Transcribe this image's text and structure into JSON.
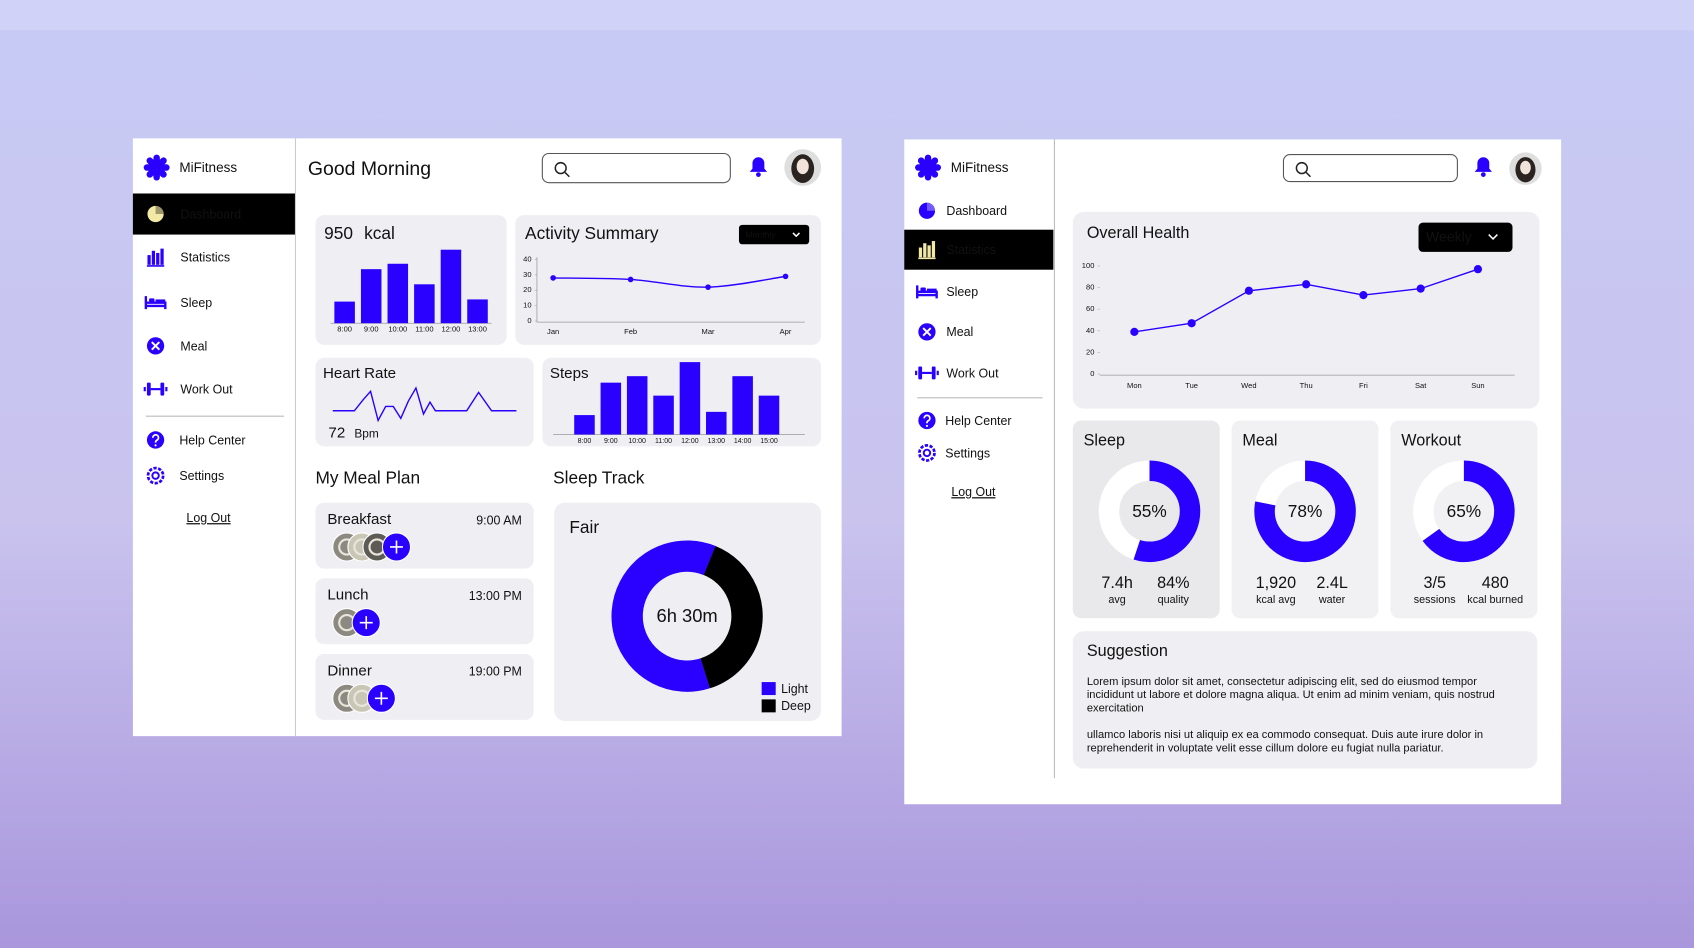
{
  "dashboard": {
    "brand": "MiFitness",
    "nav": [
      "Dashboard",
      "Statistics",
      "Sleep",
      "Meal",
      "Work Out"
    ],
    "active_nav": 0,
    "support": [
      "Help Center",
      "Settings"
    ],
    "logout": "Log Out",
    "greeting": "Good Morning",
    "calories": {
      "type": "bar",
      "value": 950,
      "unit": "kcal",
      "categories": [
        "8:00",
        "9:00",
        "10:00",
        "11:00",
        "12:00",
        "13:00"
      ],
      "values": [
        20,
        50,
        55,
        36,
        68,
        22
      ],
      "ylim": [
        0,
        70
      ],
      "color": "#2a00ff"
    },
    "activity": {
      "type": "line",
      "title": "Activity Summary",
      "period": "Monthly",
      "categories": [
        "Jan",
        "Feb",
        "Mar",
        "Apr"
      ],
      "values": [
        28,
        27,
        22,
        29
      ],
      "ylim": [
        0,
        40
      ],
      "yticks": [
        0,
        10,
        20,
        30,
        40
      ],
      "color": "#2a00ff"
    },
    "heart_rate": {
      "title": "Heart Rate",
      "value": 72,
      "unit": "Bpm"
    },
    "steps": {
      "type": "bar",
      "title": "Steps",
      "categories": [
        "8:00",
        "9:00",
        "10:00",
        "11:00",
        "12:00",
        "13:00",
        "14:00",
        "15:00"
      ],
      "values": [
        18,
        48,
        54,
        36,
        67,
        21,
        54,
        36
      ],
      "ylim": [
        0,
        70
      ],
      "color": "#2a00ff"
    },
    "meal_plan": {
      "title": "My Meal Plan",
      "meals": [
        {
          "name": "Breakfast",
          "time": "9:00 AM",
          "photos": 3
        },
        {
          "name": "Lunch",
          "time": "13:00 PM",
          "photos": 1
        },
        {
          "name": "Dinner",
          "time": "19:00 PM",
          "photos": 2
        }
      ]
    },
    "sleep_track": {
      "type": "pie",
      "title": "Sleep Track",
      "quality": "Fair",
      "duration": "6h 30m",
      "series": [
        {
          "name": "Light",
          "color": "#2a00ff",
          "value": 61
        },
        {
          "name": "Deep",
          "color": "#000000",
          "value": 39
        }
      ]
    }
  },
  "statistics": {
    "brand": "MiFitness",
    "nav": [
      "Dashboard",
      "Statistics",
      "Sleep",
      "Meal",
      "Work Out"
    ],
    "active_nav": 1,
    "support": [
      "Help Center",
      "Settings"
    ],
    "logout": "Log Out",
    "overall": {
      "type": "line",
      "title": "Overall Health",
      "period": "Weekly",
      "categories": [
        "Mon",
        "Tue",
        "Wed",
        "Thu",
        "Fri",
        "Sat",
        "Sun"
      ],
      "values": [
        39,
        47,
        77,
        83,
        73,
        79,
        97
      ],
      "ylim": [
        0,
        100
      ],
      "yticks": [
        0,
        20,
        40,
        60,
        80,
        100
      ],
      "color": "#2a00ff"
    },
    "rings": [
      {
        "title": "Sleep",
        "percent": {
          "value": 55,
          "label": "55%"
        },
        "stats": [
          {
            "value": "7.4h",
            "label": "avg"
          },
          {
            "value": "84%",
            "label": "quality"
          }
        ]
      },
      {
        "title": "Meal",
        "percent": {
          "value": 78,
          "label": "78%"
        },
        "stats": [
          {
            "value": "1,920",
            "label": "kcal avg"
          },
          {
            "value": "2.4L",
            "label": "water"
          }
        ]
      },
      {
        "title": "Workout",
        "percent": {
          "value": 65,
          "label": "65%"
        },
        "stats": [
          {
            "value": "3/5",
            "label": "sessions"
          },
          {
            "value": "480",
            "label": "kcal burned"
          }
        ]
      }
    ],
    "suggestion": {
      "title": "Suggestion",
      "paragraphs": [
        [
          "Lorem ipsum dolor sit amet, consectetur adipiscing elit, sed do eiusmod tempor",
          "incididunt ut labore et dolore magna aliqua. Ut enim ad minim veniam, quis nostrud",
          "exercitation"
        ],
        [
          "ullamco laboris nisi ut aliquip ex ea commodo consequat. Duis aute irure dolor in",
          "reprehenderit in voluptate velit esse cillum dolore eu fugiat nulla pariatur."
        ]
      ]
    }
  }
}
